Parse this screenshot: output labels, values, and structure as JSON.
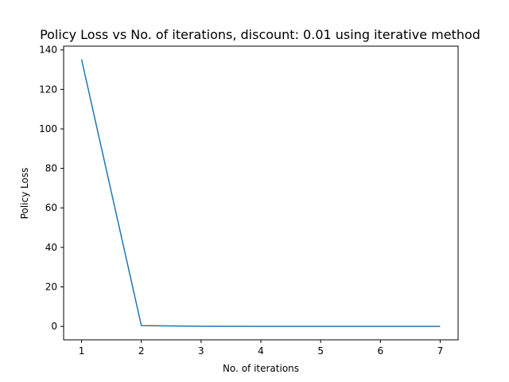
{
  "chart_data": {
    "type": "line",
    "title": "Policy Loss vs No. of iterations, discount: 0.01 using iterative method",
    "xlabel": "No. of iterations",
    "ylabel": "Policy Loss",
    "x": [
      1,
      2,
      3,
      4,
      5,
      6,
      7
    ],
    "series": [
      {
        "values": [
          135.2,
          0.4,
          0.05,
          0.02,
          0.01,
          0.01,
          0.01
        ],
        "color": "#1f77b4"
      }
    ],
    "xlim": [
      0.7,
      7.3
    ],
    "ylim": [
      -6.8,
      141.9
    ],
    "xticks": [
      1,
      2,
      3,
      4,
      5,
      6,
      7
    ],
    "yticks": [
      0,
      20,
      40,
      60,
      80,
      100,
      120,
      140
    ],
    "grid": false,
    "legend": "none"
  }
}
